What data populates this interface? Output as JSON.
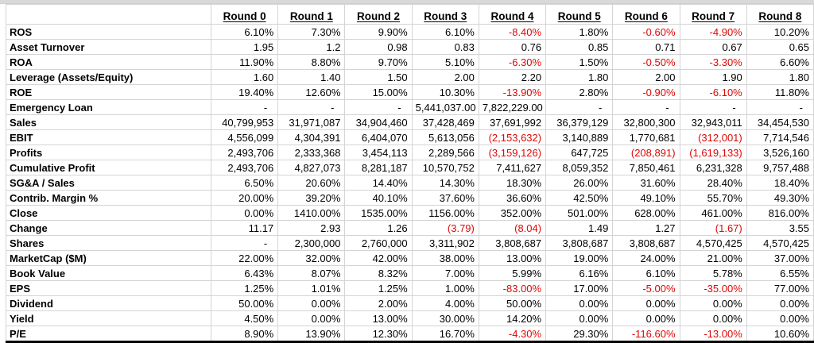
{
  "sheet": {
    "corner_label": "",
    "columns": [
      "Round 0",
      "Round 1",
      "Round 2",
      "Round 3",
      "Round 4",
      "Round 5",
      "Round 6",
      "Round 7",
      "Round 8"
    ],
    "rows": [
      {
        "label": "ROS",
        "values": [
          "6.10%",
          "7.30%",
          "9.90%",
          "6.10%",
          "-8.40%",
          "1.80%",
          "-0.60%",
          "-4.90%",
          "10.20%"
        ]
      },
      {
        "label": "Asset Turnover",
        "values": [
          "1.95",
          "1.2",
          "0.98",
          "0.83",
          "0.76",
          "0.85",
          "0.71",
          "0.67",
          "0.65"
        ]
      },
      {
        "label": "ROA",
        "values": [
          "11.90%",
          "8.80%",
          "9.70%",
          "5.10%",
          "-6.30%",
          "1.50%",
          "-0.50%",
          "-3.30%",
          "6.60%"
        ]
      },
      {
        "label": "Leverage (Assets/Equity)",
        "values": [
          "1.60",
          "1.40",
          "1.50",
          "2.00",
          "2.20",
          "1.80",
          "2.00",
          "1.90",
          "1.80"
        ]
      },
      {
        "label": "ROE",
        "values": [
          "19.40%",
          "12.60%",
          "15.00%",
          "10.30%",
          "-13.90%",
          "2.80%",
          "-0.90%",
          "-6.10%",
          "11.80%"
        ]
      },
      {
        "label": "Emergency Loan",
        "values": [
          "-",
          "-",
          "-",
          "5,441,037.00",
          "7,822,229.00",
          "-",
          "-",
          "-",
          "-"
        ]
      },
      {
        "label": "Sales",
        "values": [
          "40,799,953",
          "31,971,087",
          "34,904,460",
          "37,428,469",
          "37,691,992",
          "36,379,129",
          "32,800,300",
          "32,943,011",
          "34,454,530"
        ]
      },
      {
        "label": "EBIT",
        "values": [
          "4,556,099",
          "4,304,391",
          "6,404,070",
          "5,613,056",
          "(2,153,632)",
          "3,140,889",
          "1,770,681",
          "(312,001)",
          "7,714,546"
        ]
      },
      {
        "label": "Profits",
        "values": [
          "2,493,706",
          "2,333,368",
          "3,454,113",
          "2,289,566",
          "(3,159,126)",
          "647,725",
          "(208,891)",
          "(1,619,133)",
          "3,526,160"
        ]
      },
      {
        "label": "Cumulative Profit",
        "values": [
          "2,493,706",
          "4,827,073",
          "8,281,187",
          "10,570,752",
          "7,411,627",
          "8,059,352",
          "7,850,461",
          "6,231,328",
          "9,757,488"
        ]
      },
      {
        "label": "SG&A / Sales",
        "values": [
          "6.50%",
          "20.60%",
          "14.40%",
          "14.30%",
          "18.30%",
          "26.00%",
          "31.60%",
          "28.40%",
          "18.40%"
        ]
      },
      {
        "label": "Contrib. Margin %",
        "values": [
          "20.00%",
          "39.20%",
          "40.10%",
          "37.60%",
          "36.60%",
          "42.50%",
          "49.10%",
          "55.70%",
          "49.30%"
        ]
      },
      {
        "label": "Close",
        "values": [
          "0.00%",
          "1410.00%",
          "1535.00%",
          "1156.00%",
          "352.00%",
          "501.00%",
          "628.00%",
          "461.00%",
          "816.00%"
        ]
      },
      {
        "label": "Change",
        "values": [
          "11.17",
          "2.93",
          "1.26",
          "(3.79)",
          "(8.04)",
          "1.49",
          "1.27",
          "(1.67)",
          "3.55"
        ]
      },
      {
        "label": "Shares",
        "values": [
          "-",
          "2,300,000",
          "2,760,000",
          "3,311,902",
          "3,808,687",
          "3,808,687",
          "3,808,687",
          "4,570,425",
          "4,570,425"
        ]
      },
      {
        "label": "MarketCap ($M)",
        "values": [
          "22.00%",
          "32.00%",
          "42.00%",
          "38.00%",
          "13.00%",
          "19.00%",
          "24.00%",
          "21.00%",
          "37.00%"
        ]
      },
      {
        "label": "Book Value",
        "values": [
          "6.43%",
          "8.07%",
          "8.32%",
          "7.00%",
          "5.99%",
          "6.16%",
          "6.10%",
          "5.78%",
          "6.55%"
        ]
      },
      {
        "label": "EPS",
        "values": [
          "1.25%",
          "1.01%",
          "1.25%",
          "1.00%",
          "-83.00%",
          "17.00%",
          "-5.00%",
          "-35.00%",
          "77.00%"
        ]
      },
      {
        "label": "Dividend",
        "values": [
          "50.00%",
          "0.00%",
          "2.00%",
          "4.00%",
          "50.00%",
          "0.00%",
          "0.00%",
          "0.00%",
          "0.00%"
        ]
      },
      {
        "label": "Yield",
        "values": [
          "4.50%",
          "0.00%",
          "13.00%",
          "30.00%",
          "14.20%",
          "0.00%",
          "0.00%",
          "0.00%",
          "0.00%"
        ]
      },
      {
        "label": "P/E",
        "values": [
          "8.90%",
          "13.90%",
          "12.30%",
          "16.70%",
          "-4.30%",
          "29.30%",
          "-116.60%",
          "-13.00%",
          "10.60%"
        ]
      }
    ]
  },
  "colors": {
    "negative_text": "#dd0806",
    "normal_text": "#000000",
    "gridline": "#d4d4d4",
    "bottom_border": "#000000",
    "top_strip": "#d9d9d9"
  }
}
